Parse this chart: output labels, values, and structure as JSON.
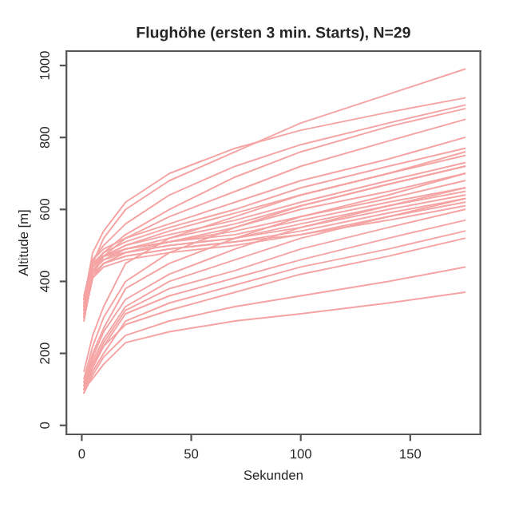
{
  "chart_data": {
    "type": "line",
    "title": "Flughöhe (ersten 3 min. Starts), N=29",
    "xlabel": "Sekunden",
    "ylabel": "Altitude [m]",
    "x": [
      1,
      5,
      10,
      20,
      40,
      70,
      100,
      140,
      175
    ],
    "xlim": [
      -7,
      182
    ],
    "ylim": [
      -25,
      1040
    ],
    "xticks": [
      0,
      50,
      100,
      150
    ],
    "yticks": [
      0,
      200,
      400,
      600,
      800,
      1000
    ],
    "grid": false,
    "legend": false,
    "series": [
      {
        "color": "#f5a3a3",
        "values": [
          330,
          450,
          520,
          600,
          680,
          760,
          840,
          920,
          990
        ]
      },
      {
        "color": "#f5a3a3",
        "values": [
          350,
          480,
          540,
          620,
          700,
          770,
          820,
          870,
          910
        ]
      },
      {
        "color": "#f5a3a3",
        "values": [
          320,
          460,
          500,
          560,
          640,
          720,
          780,
          840,
          890
        ]
      },
      {
        "color": "#f5a3a3",
        "values": [
          340,
          440,
          480,
          530,
          600,
          690,
          760,
          830,
          880
        ]
      },
      {
        "color": "#f5a3a3",
        "values": [
          300,
          430,
          470,
          520,
          580,
          650,
          720,
          790,
          850
        ]
      },
      {
        "color": "#f5a3a3",
        "values": [
          360,
          460,
          490,
          520,
          560,
          620,
          680,
          740,
          800
        ]
      },
      {
        "color": "#f5a3a3",
        "values": [
          330,
          450,
          480,
          510,
          550,
          600,
          660,
          720,
          770
        ]
      },
      {
        "color": "#f5a3a3",
        "values": [
          310,
          420,
          470,
          500,
          540,
          590,
          640,
          700,
          750
        ]
      },
      {
        "color": "#f5a3a3",
        "values": [
          350,
          440,
          470,
          500,
          530,
          570,
          620,
          680,
          730
        ]
      },
      {
        "color": "#f5a3a3",
        "values": [
          320,
          430,
          460,
          490,
          520,
          560,
          610,
          670,
          720
        ]
      },
      {
        "color": "#f5a3a3",
        "values": [
          300,
          410,
          450,
          480,
          510,
          550,
          600,
          650,
          700
        ]
      },
      {
        "color": "#f5a3a3",
        "values": [
          340,
          450,
          470,
          490,
          510,
          540,
          580,
          630,
          680
        ]
      },
      {
        "color": "#f5a3a3",
        "values": [
          330,
          440,
          470,
          490,
          510,
          530,
          570,
          620,
          660
        ]
      },
      {
        "color": "#f5a3a3",
        "values": [
          310,
          430,
          460,
          480,
          500,
          520,
          560,
          610,
          650
        ]
      },
      {
        "color": "#f5a3a3",
        "values": [
          350,
          450,
          470,
          480,
          500,
          520,
          550,
          600,
          640
        ]
      },
      {
        "color": "#f5a3a3",
        "values": [
          320,
          420,
          450,
          470,
          490,
          510,
          540,
          590,
          630
        ]
      },
      {
        "color": "#f5a3a3",
        "values": [
          300,
          410,
          440,
          460,
          480,
          500,
          530,
          580,
          620
        ]
      },
      {
        "color": "#f5a3a3",
        "values": [
          290,
          420,
          450,
          470,
          490,
          510,
          530,
          570,
          610
        ]
      },
      {
        "color": "#f5a3a3",
        "values": [
          150,
          250,
          330,
          450,
          520,
          580,
          640,
          700,
          760
        ]
      },
      {
        "color": "#f5a3a3",
        "values": [
          130,
          220,
          300,
          400,
          480,
          550,
          610,
          670,
          720
        ]
      },
      {
        "color": "#f5a3a3",
        "values": [
          120,
          200,
          270,
          380,
          450,
          520,
          580,
          640,
          700
        ]
      },
      {
        "color": "#f5a3a3",
        "values": [
          110,
          190,
          260,
          350,
          420,
          490,
          550,
          610,
          660
        ]
      },
      {
        "color": "#f5a3a3",
        "values": [
          100,
          180,
          240,
          330,
          400,
          460,
          520,
          580,
          630
        ]
      },
      {
        "color": "#f5a3a3",
        "values": [
          120,
          170,
          230,
          320,
          380,
          430,
          490,
          550,
          600
        ]
      },
      {
        "color": "#f5a3a3",
        "values": [
          100,
          160,
          220,
          310,
          360,
          410,
          460,
          520,
          570
        ]
      },
      {
        "color": "#f5a3a3",
        "values": [
          90,
          150,
          200,
          290,
          340,
          390,
          440,
          490,
          540
        ]
      },
      {
        "color": "#f5a3a3",
        "values": [
          110,
          170,
          220,
          280,
          320,
          370,
          420,
          470,
          520
        ]
      },
      {
        "color": "#f5a3a3",
        "values": [
          90,
          140,
          190,
          250,
          290,
          330,
          360,
          400,
          440
        ]
      },
      {
        "color": "#f5a3a3",
        "values": [
          100,
          130,
          170,
          230,
          260,
          290,
          310,
          340,
          370
        ]
      }
    ]
  }
}
